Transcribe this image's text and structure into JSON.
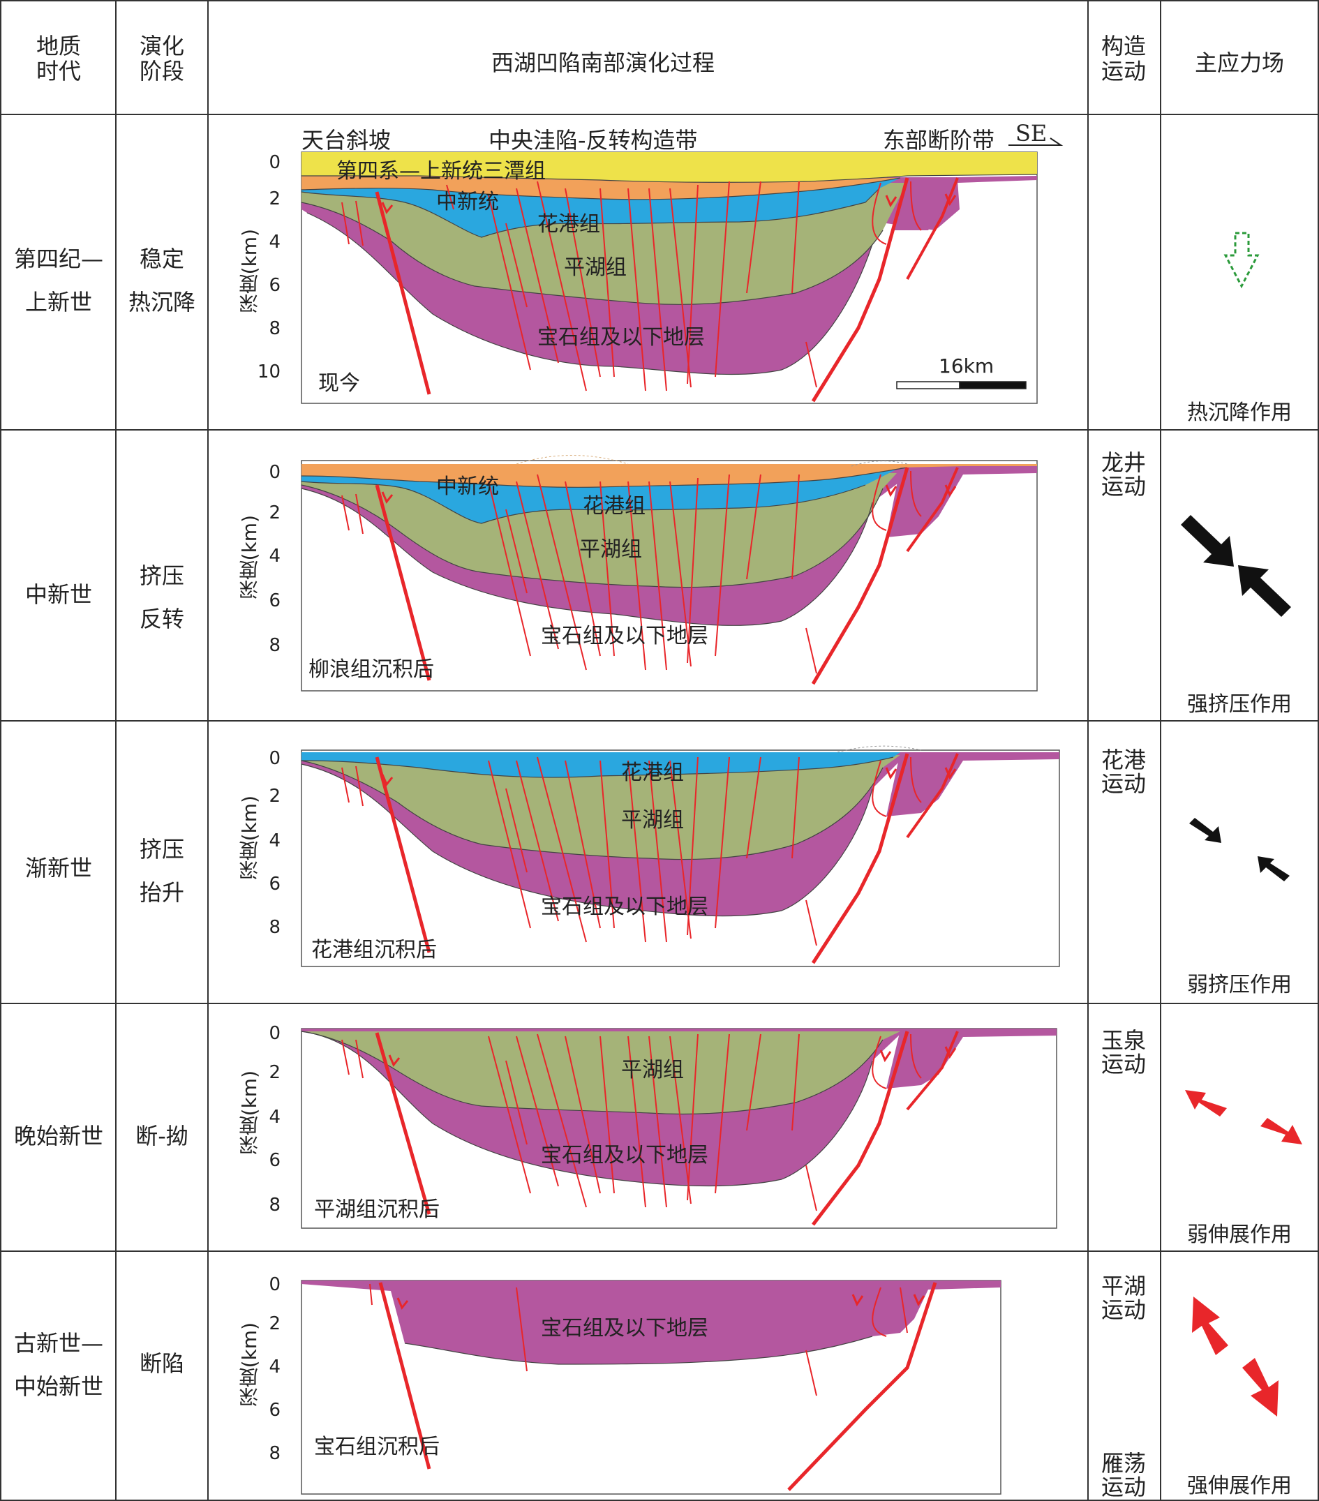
{
  "header": {
    "era": "地质\n时代",
    "stage": "演化\n阶段",
    "process": "西湖凹陷南部演化过程",
    "tectonic": "构造\n运动",
    "stress": "主应力场"
  },
  "top_labels": {
    "left": "天台斜坡",
    "middle": "中央洼陷-反转构造带",
    "right": "东部断阶带",
    "direction": "SE"
  },
  "axis_label": "深度(km)",
  "scale_bar": "16km",
  "rows": [
    {
      "era": "第四纪—\n上新世",
      "stage": "稳定\n热沉降",
      "tectonic": "",
      "force": "热沉降作用",
      "panel_label": "现今",
      "ticks": [
        "0",
        "2",
        "4",
        "6",
        "8",
        "10"
      ],
      "layers": [
        "第四系—上新统三潭组",
        "中新统",
        "花港组",
        "平湖组",
        "宝石组及以下地层"
      ],
      "arrow": "dashed-green-down"
    },
    {
      "era": "中新世",
      "stage": "挤压\n反转",
      "tectonic": "龙井\n运动",
      "force": "强挤压作用",
      "panel_label": "柳浪组沉积后",
      "ticks": [
        "0",
        "2",
        "4",
        "6",
        "8"
      ],
      "layers": [
        "中新统",
        "花港组",
        "平湖组",
        "宝石组及以下地层"
      ],
      "arrow": "large-black-compression"
    },
    {
      "era": "渐新世",
      "stage": "挤压\n抬升",
      "tectonic": "花港\n运动",
      "force": "弱挤压作用",
      "panel_label": "花港组沉积后",
      "ticks": [
        "0",
        "2",
        "4",
        "6",
        "8"
      ],
      "layers": [
        "花港组",
        "平湖组",
        "宝石组及以下地层"
      ],
      "arrow": "small-black-compression"
    },
    {
      "era": "晚始新世",
      "stage": "断-拗",
      "tectonic": "玉泉\n运动",
      "force": "弱伸展作用",
      "panel_label": "平湖组沉积后",
      "ticks": [
        "0",
        "2",
        "4",
        "6",
        "8"
      ],
      "layers": [
        "平湖组",
        "宝石组及以下地层"
      ],
      "arrow": "small-red-extension"
    },
    {
      "era": "古新世—\n中始新世",
      "stage": "断陷",
      "tectonic": "平湖\n运动",
      "tectonic2": "雁荡\n运动",
      "force": "强伸展作用",
      "panel_label": "宝石组沉积后",
      "ticks": [
        "0",
        "2",
        "4",
        "6",
        "8"
      ],
      "layers": [
        "宝石组及以下地层"
      ],
      "arrow": "large-red-extension"
    }
  ],
  "colors": {
    "quaternary": "#eee24a",
    "miocene": "#f2a15a",
    "huagang": "#2aa7df",
    "pinghu": "#a5b378",
    "baoshi": "#b4579f",
    "fault": "#e8262a",
    "grid": "#333333"
  }
}
